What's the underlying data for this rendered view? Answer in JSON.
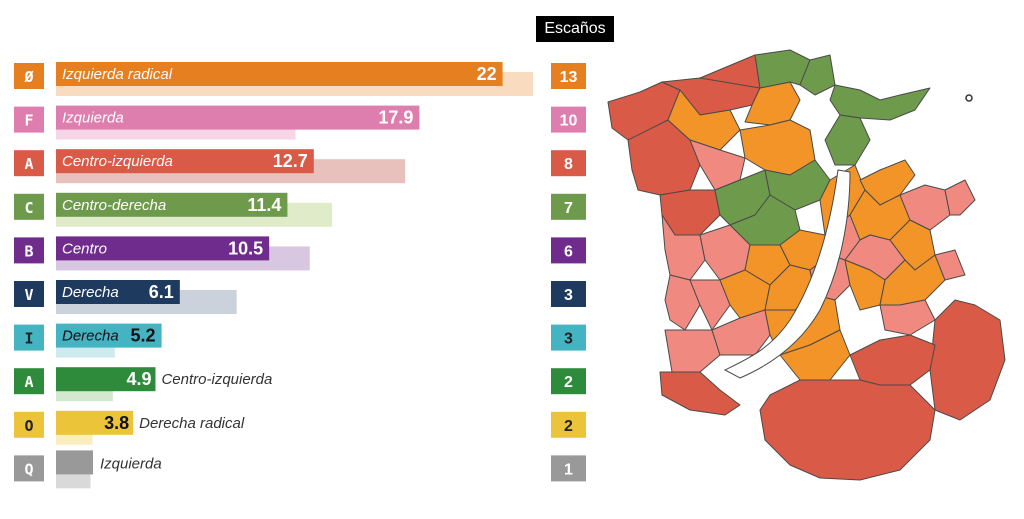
{
  "header": {
    "seats_label": "Escaños"
  },
  "chart_data": {
    "type": "bar",
    "title": "",
    "xlabel": "",
    "ylabel": "",
    "xlim": [
      0,
      25
    ],
    "parties": [
      {
        "letter": "Ø",
        "name": "Izquierda radical",
        "value": 22,
        "prev": 23.5,
        "seats": 13,
        "color": "#E57F1F",
        "prev_color": "#F9DCC0",
        "label_dark": false
      },
      {
        "letter": "F",
        "name": "Izquierda",
        "value": 17.9,
        "prev": 11.8,
        "seats": 10,
        "color": "#DE7EAE",
        "prev_color": "#F5D5E6",
        "label_dark": false
      },
      {
        "letter": "A",
        "name": "Centro-izquierda",
        "value": 12.7,
        "prev": 17.2,
        "seats": 8,
        "color": "#D95A46",
        "prev_color": "#E9C1BC",
        "label_dark": false
      },
      {
        "letter": "C",
        "name": "Centro-derecha",
        "value": 11.4,
        "prev": 13.6,
        "seats": 7,
        "color": "#6E9A4C",
        "prev_color": "#E0EBC9",
        "label_dark": false
      },
      {
        "letter": "B",
        "name": "Centro",
        "value": 10.5,
        "prev": 12.5,
        "seats": 6,
        "color": "#6F2C8C",
        "prev_color": "#D8C7E0",
        "label_dark": false
      },
      {
        "letter": "V",
        "name": "Derecha",
        "value": 6.1,
        "prev": 8.9,
        "seats": 3,
        "color": "#1F3A5F",
        "prev_color": "#CBD2DC",
        "label_dark": false
      },
      {
        "letter": "I",
        "name": "Derecha",
        "value": 5.2,
        "prev": 2.9,
        "seats": 3,
        "color": "#44B3C2",
        "prev_color": "#CDEBEF",
        "label_dark": true
      },
      {
        "letter": "A",
        "name": "Centro-izquierda",
        "value": 4.9,
        "prev": 2.8,
        "seats": 2,
        "color": "#2E8B3C",
        "prev_color": "#D2E8CF",
        "label_dark": false
      },
      {
        "letter": "O",
        "name": "Derecha radical",
        "value": 3.8,
        "prev": 1.8,
        "seats": 2,
        "color": "#ECC43A",
        "prev_color": "#FAEDC0",
        "label_dark": true
      },
      {
        "letter": "Q",
        "name": "Izquierda",
        "value": null,
        "prev": 1.7,
        "seats": 1,
        "color": "#999999",
        "prev_color": "#D9D9D9",
        "label_dark": false
      }
    ]
  },
  "map": {
    "region_colors": [
      "#D95A46",
      "#F29427",
      "#6E9A4C",
      "#F08A80"
    ],
    "border_color": "#4a4a4a",
    "water_color": "#ffffff"
  }
}
